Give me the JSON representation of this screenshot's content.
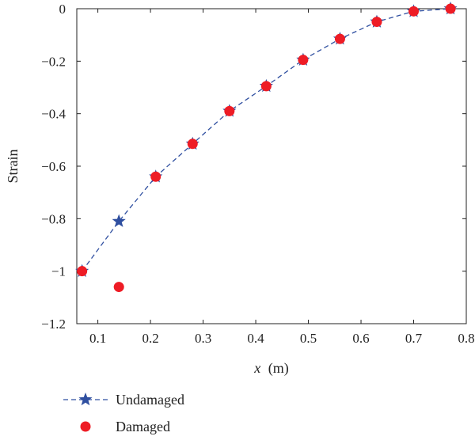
{
  "chart_data": {
    "type": "scatter",
    "xlabel_var": "x",
    "xlabel_unit": "(m)",
    "ylabel": "Strain",
    "xlim": [
      0.06,
      0.8
    ],
    "ylim": [
      -1.2,
      0
    ],
    "xticks": [
      0.1,
      0.2,
      0.3,
      0.4,
      0.5,
      0.6,
      0.7,
      0.8
    ],
    "yticks": [
      0,
      -0.2,
      -0.4,
      -0.6,
      -0.8,
      -1,
      -1.2
    ],
    "xtick_labels": [
      "0.1",
      "0.2",
      "0.3",
      "0.4",
      "0.5",
      "0.6",
      "0.7",
      "0.8"
    ],
    "ytick_labels": [
      "0",
      "−0.2",
      "−0.4",
      "−0.6",
      "−0.8",
      "−1",
      "−1.2"
    ],
    "grid": false,
    "legend_position": "bottom-left",
    "series": [
      {
        "name": "Undamaged",
        "style": "dashed-line-star",
        "color": "#2f4fa0",
        "x": [
          0.07,
          0.14,
          0.21,
          0.28,
          0.35,
          0.42,
          0.49,
          0.56,
          0.63,
          0.7,
          0.77
        ],
        "y": [
          -1.0,
          -0.81,
          -0.64,
          -0.515,
          -0.39,
          -0.295,
          -0.195,
          -0.115,
          -0.05,
          -0.01,
          0.0
        ]
      },
      {
        "name": "Damaged",
        "style": "dot",
        "color": "#ee1c25",
        "x": [
          0.07,
          0.14,
          0.21,
          0.28,
          0.35,
          0.42,
          0.49,
          0.56,
          0.63,
          0.7,
          0.77
        ],
        "y": [
          -1.0,
          -1.06,
          -0.64,
          -0.515,
          -0.39,
          -0.295,
          -0.195,
          -0.115,
          -0.05,
          -0.01,
          0.0
        ]
      }
    ]
  }
}
